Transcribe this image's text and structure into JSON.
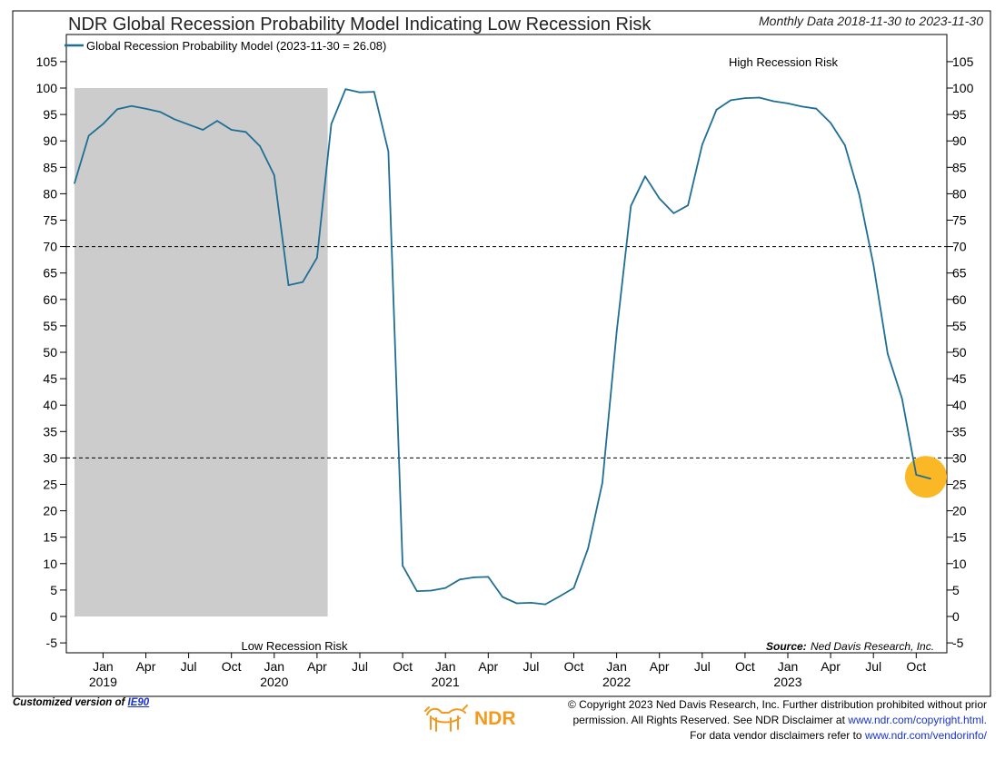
{
  "chart_data": {
    "type": "line",
    "title": "NDR Global Recession Probability Model Indicating Low Recession Risk",
    "subtitle": "Monthly Data 2018-11-30 to 2023-11-30",
    "legend": {
      "label": "Global Recession Probability Model (2023-11-30 = 26.08)",
      "position": "top-left"
    },
    "yticks": [
      105,
      100,
      95,
      90,
      85,
      80,
      75,
      70,
      65,
      60,
      55,
      50,
      45,
      40,
      35,
      30,
      25,
      20,
      15,
      10,
      5,
      0,
      -5
    ],
    "ylim": [
      -5,
      105
    ],
    "xtick_labels": [
      "Jan",
      "Apr",
      "Jul",
      "Oct",
      "Jan",
      "Apr",
      "Jul",
      "Oct",
      "Jan",
      "Apr",
      "Jul",
      "Oct",
      "Jan",
      "Apr",
      "Jul",
      "Oct",
      "Jan",
      "Apr",
      "Jul",
      "Oct"
    ],
    "year_labels": [
      "2019",
      "2020",
      "2021",
      "2022",
      "2023"
    ],
    "reference_lines": [
      70,
      30
    ],
    "shaded_period": {
      "from": "2018-11",
      "to": "2020-05"
    },
    "annotations": {
      "high": "High Recession Risk",
      "low": "Low Recession Risk"
    },
    "source_label": "Source:",
    "source_text": "Ned Davis Research, Inc.",
    "highlight_point": "2023-11",
    "series": [
      {
        "name": "Global Recession Probability Model",
        "color": "#1f6f94",
        "x": [
          "2018-11",
          "2018-12",
          "2019-01",
          "2019-02",
          "2019-03",
          "2019-04",
          "2019-05",
          "2019-06",
          "2019-07",
          "2019-08",
          "2019-09",
          "2019-10",
          "2019-11",
          "2019-12",
          "2020-01",
          "2020-02",
          "2020-03",
          "2020-04",
          "2020-05",
          "2020-06",
          "2020-07",
          "2020-08",
          "2020-09",
          "2020-10",
          "2020-11",
          "2020-12",
          "2021-01",
          "2021-02",
          "2021-03",
          "2021-04",
          "2021-05",
          "2021-06",
          "2021-07",
          "2021-08",
          "2021-09",
          "2021-10",
          "2021-11",
          "2021-12",
          "2022-01",
          "2022-02",
          "2022-03",
          "2022-04",
          "2022-05",
          "2022-06",
          "2022-07",
          "2022-08",
          "2022-09",
          "2022-10",
          "2022-11",
          "2022-12",
          "2023-01",
          "2023-02",
          "2023-03",
          "2023-04",
          "2023-05",
          "2023-06",
          "2023-07",
          "2023-08",
          "2023-09",
          "2023-10",
          "2023-11"
        ],
        "values": [
          82.0,
          91.0,
          93.2,
          96.0,
          96.6,
          96.1,
          95.5,
          94.1,
          93.1,
          92.1,
          93.8,
          92.1,
          91.7,
          89.0,
          83.5,
          62.7,
          63.3,
          67.9,
          93.2,
          99.8,
          99.2,
          99.3,
          88.0,
          9.6,
          4.8,
          4.9,
          5.4,
          7.0,
          7.4,
          7.5,
          3.7,
          2.5,
          2.6,
          2.3,
          3.8,
          5.4,
          12.9,
          25.3,
          53.8,
          77.7,
          83.3,
          79.1,
          76.3,
          77.8,
          89.3,
          95.9,
          97.7,
          98.1,
          98.2,
          97.5,
          97.1,
          96.5,
          96.1,
          93.4,
          89.2,
          79.9,
          66.6,
          49.7,
          41.3,
          26.8,
          26.08
        ]
      }
    ]
  },
  "footer": {
    "customized_prefix": "Customized version of",
    "customized_link": "IE90",
    "logo_text": "NDR",
    "copyright_line1": "© Copyright 2023 Ned Davis Research, Inc. Further distribution prohibited without prior",
    "copyright_line2_prefix": "permission. All Rights Reserved. See NDR Disclaimer at",
    "copyright_line2_link": "www.ndr.com/copyright.html.",
    "copyright_line3_prefix": "For data vendor disclaimers refer to",
    "copyright_line3_link": "www.ndr.com/vendorinfo/"
  },
  "colors": {
    "line": "#1f6f94",
    "shade": "#cccccc",
    "highlight": "#fbb826",
    "logo": "#f39a1e",
    "link": "#1a33cc"
  }
}
